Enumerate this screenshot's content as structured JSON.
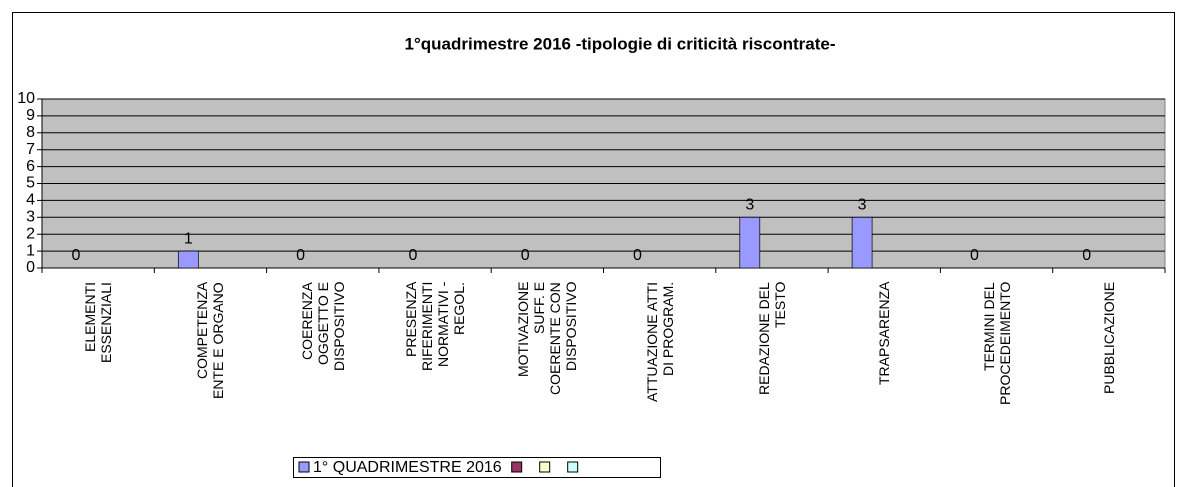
{
  "chart_data": {
    "type": "bar",
    "title": "1°quadrimestre 2016 -tipologie di criticità riscontrate-",
    "categories": [
      "ELEMENTI\nESSENZIALI",
      "COMPETENZA\nENTE E ORGANO",
      "COERENZA\nOGGETTO E\nDISPOSITIVO",
      "PRESENZA\nRIFERIMENTI\nNORMATIVI -\nREGOL.",
      "MOTIVAZIONE\nSUFF. E\nCOERENTE CON\nDISPOSITIVO",
      "ATTUAZIONE ATTI\nDI PROGRAM.",
      "REDAZIONE  DEL\nTESTO",
      "TRAPSARENZA",
      "TERMINI DEL\nPROCEDEIMENTO",
      "PUBBLICAZIONE"
    ],
    "series": [
      {
        "name": "1° QUADRIMESTRE 2016",
        "color": "#9999ff",
        "values": [
          0,
          1,
          0,
          0,
          0,
          0,
          3,
          3,
          0,
          0
        ]
      },
      {
        "color": "#993366",
        "values": [
          null,
          null,
          null,
          null,
          null,
          null,
          null,
          null,
          null,
          null
        ]
      },
      {
        "color": "#ffffcc",
        "values": [
          null,
          null,
          null,
          null,
          null,
          null,
          null,
          null,
          null,
          null
        ]
      },
      {
        "color": "#ccffff",
        "values": [
          null,
          null,
          null,
          null,
          null,
          null,
          null,
          null,
          null,
          null
        ]
      }
    ],
    "ylim": [
      0,
      10
    ],
    "yticks": [
      0,
      1,
      2,
      3,
      4,
      5,
      6,
      7,
      8,
      9,
      10
    ],
    "grid": true,
    "legend": "bottom"
  }
}
